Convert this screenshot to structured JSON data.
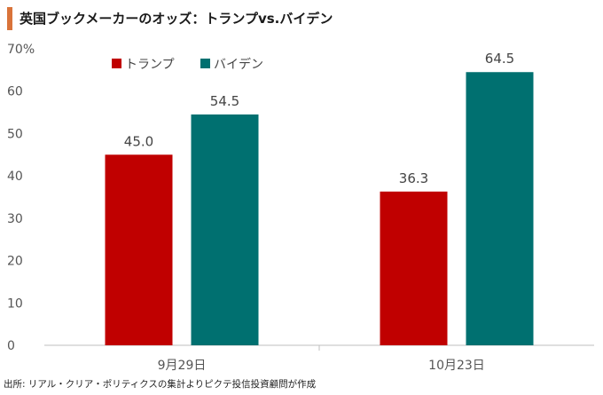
{
  "header": {
    "title": "英国ブックメーカーのオッズ：トランプvs.バイデン"
  },
  "footer": {
    "source": "出所: リアル・クリア・ポリティクスの集計よりピクテ投信投資顧問が作成"
  },
  "colors": {
    "accent": "#d9733a",
    "trump": "#c00000",
    "biden": "#007070"
  },
  "chart_data": {
    "type": "bar",
    "categories": [
      "9月29日",
      "10月23日"
    ],
    "series": [
      {
        "name": "トランプ",
        "values": [
          45.0,
          36.3
        ],
        "labels": [
          "45.0",
          "36.3"
        ],
        "color": "#c00000"
      },
      {
        "name": "バイデン",
        "values": [
          54.5,
          64.5
        ],
        "labels": [
          "54.5",
          "64.5"
        ],
        "color": "#007070"
      }
    ],
    "ylim": [
      0,
      70
    ],
    "yticks": [
      0,
      10,
      20,
      30,
      40,
      50,
      60,
      70
    ],
    "ytick_labels": [
      "0",
      "10",
      "20",
      "30",
      "40",
      "50",
      "60",
      "70%"
    ],
    "grid": false,
    "legend": "top-left"
  }
}
